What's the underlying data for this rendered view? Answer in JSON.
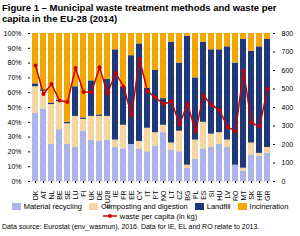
{
  "chart_data": {
    "type": "bar",
    "title": "Figure 1 – Municipal waste treatment methods and waste per\ncapita in the EU-28 (2014)",
    "categories": [
      "DK",
      "AT",
      "NL",
      "BE",
      "SE",
      "LU",
      "FI",
      "UK",
      "DE",
      "EU28",
      "IE",
      "FR",
      "EE",
      "CY",
      "IT",
      "PT",
      "NO",
      "LT",
      "CZ",
      "BG",
      "PL",
      "ES",
      "SI",
      "HU",
      "LV",
      "RO",
      "MT",
      "SK",
      "HR",
      "GR"
    ],
    "stacked": true,
    "grid": true,
    "legend": "bottom",
    "series": [
      {
        "name": "Material recycling",
        "color": "#aab4e8",
        "values": [
          46,
          49,
          25,
          35,
          25,
          23,
          34,
          28,
          27,
          28,
          23,
          22,
          25,
          22,
          20,
          24,
          33,
          21,
          20,
          9,
          15,
          22,
          23,
          25,
          23,
          11,
          7,
          18,
          17,
          19
        ]
      },
      {
        "name": "Composting and digestion",
        "color": "#f5d5a0",
        "values": [
          18,
          12,
          27,
          19,
          14,
          21,
          8,
          16,
          17,
          16,
          5,
          16,
          0,
          5,
          16,
          9,
          5,
          5,
          14,
          2,
          13,
          18,
          9,
          8,
          5,
          0,
          2,
          8,
          2,
          4
        ]
      },
      {
        "name": "Landfill",
        "color": "#1f3878",
        "values": [
          2,
          1,
          1,
          1,
          1,
          20,
          1,
          24,
          1,
          25,
          61,
          26,
          60,
          66,
          27,
          42,
          18,
          68,
          46,
          87,
          42,
          54,
          57,
          56,
          63,
          69,
          87,
          62,
          72,
          73
        ]
      },
      {
        "name": "Incineration",
        "color": "#f5a500",
        "values": [
          34,
          38,
          47,
          45,
          60,
          36,
          57,
          32,
          55,
          31,
          11,
          36,
          15,
          7,
          37,
          25,
          44,
          6,
          20,
          2,
          30,
          6,
          11,
          11,
          9,
          20,
          4,
          12,
          9,
          4
        ]
      },
      {
        "name": "waste per capita (in kg)",
        "type": "line",
        "axis": "y2",
        "marker": "circle",
        "color": "#cc0000",
        "values": [
          627,
          473,
          527,
          438,
          430,
          613,
          484,
          482,
          617,
          476,
          587,
          514,
          358,
          662,
          488,
          454,
          419,
          432,
          310,
          419,
          272,
          463,
          415,
          385,
          295,
          272,
          598,
          317,
          297,
          501
        ]
      }
    ],
    "ylim": [
      0,
      100
    ],
    "yticks": [
      {
        "value": 0,
        "label": "0%"
      },
      {
        "value": 10,
        "label": "10%"
      },
      {
        "value": 20,
        "label": "20%"
      },
      {
        "value": 30,
        "label": "30%"
      },
      {
        "value": 40,
        "label": "40%"
      },
      {
        "value": 50,
        "label": "50%"
      },
      {
        "value": 60,
        "label": "60%"
      },
      {
        "value": 70,
        "label": "70%"
      },
      {
        "value": 80,
        "label": "80%"
      },
      {
        "value": 90,
        "label": "90%"
      },
      {
        "value": 100,
        "label": "100%"
      }
    ],
    "y2lim": [
      0,
      800
    ],
    "y2ticks": [
      0,
      100,
      200,
      300,
      400,
      500,
      600,
      700,
      800
    ],
    "annotations": [
      "Data source: Eurostat (env_wasmun), 2016. Data for IE, EL and RO relate to 2013."
    ]
  }
}
